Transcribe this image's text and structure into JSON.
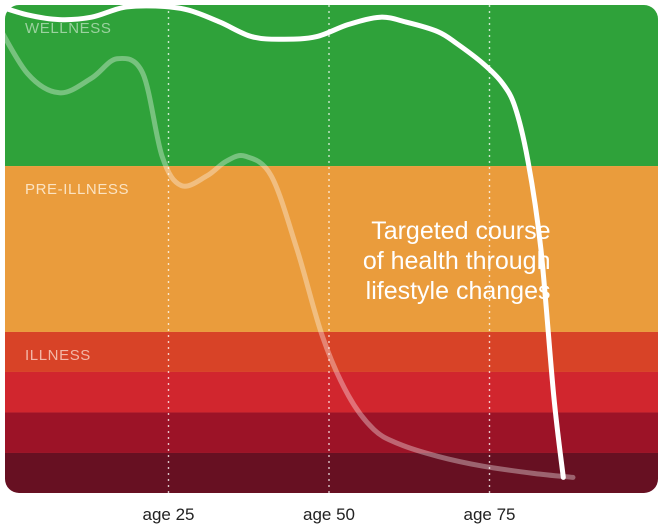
{
  "chart_data": {
    "type": "line",
    "title": "",
    "xlabel": "",
    "ylabel": "",
    "xlim": [
      0,
      100
    ],
    "ylim": [
      0,
      100
    ],
    "x_ticks": [
      {
        "value": 25,
        "label": "age 25"
      },
      {
        "value": 50,
        "label": "age 50"
      },
      {
        "value": 75,
        "label": "age 75"
      }
    ],
    "grid": {
      "vertical": true,
      "style": "dotted"
    },
    "bands": [
      {
        "label": "WELLNESS",
        "from": 67,
        "to": 100,
        "color": "#2fa23a",
        "label_color": "#9bd29f"
      },
      {
        "label": "PRE-ILLNESS",
        "from": 33,
        "to": 67,
        "color": "#ea9c3c",
        "label_color": "#fbe3c2"
      },
      {
        "label": "ILLNESS",
        "from": 24.8,
        "to": 33,
        "color": "#d84327",
        "label_color": "#f3b7a7"
      },
      {
        "label": "",
        "from": 16.5,
        "to": 24.8,
        "color": "#d1262e"
      },
      {
        "label": "",
        "from": 8.2,
        "to": 16.5,
        "color": "#9c1327"
      },
      {
        "label": "",
        "from": 0,
        "to": 8.2,
        "color": "#671022"
      }
    ],
    "series": [
      {
        "color": "#ffffff",
        "opacity": 0.35,
        "stroke": 5,
        "points": [
          [
            -2,
            97
          ],
          [
            3,
            86
          ],
          [
            8,
            82
          ],
          [
            13,
            85
          ],
          [
            17,
            89
          ],
          [
            21,
            86
          ],
          [
            24,
            69
          ],
          [
            27,
            63
          ],
          [
            31,
            65
          ],
          [
            34,
            68
          ],
          [
            37,
            69
          ],
          [
            41,
            65
          ],
          [
            45,
            50
          ],
          [
            49,
            32
          ],
          [
            53,
            20
          ],
          [
            57,
            13
          ],
          [
            61,
            10
          ],
          [
            67,
            7.5
          ],
          [
            74,
            5.5
          ],
          [
            82,
            4
          ],
          [
            88,
            3.2
          ]
        ]
      },
      {
        "color": "#ffffff",
        "opacity": 1,
        "stroke": 5,
        "points": [
          [
            -2,
            100
          ],
          [
            3,
            98
          ],
          [
            8,
            97
          ],
          [
            13,
            97.5
          ],
          [
            18,
            99.5
          ],
          [
            23,
            99.8
          ],
          [
            28,
            99
          ],
          [
            33,
            96.5
          ],
          [
            38,
            93.5
          ],
          [
            43,
            93
          ],
          [
            48,
            93.5
          ],
          [
            53,
            96
          ],
          [
            58,
            97.5
          ],
          [
            62,
            96.5
          ],
          [
            67,
            94.5
          ],
          [
            70,
            92
          ],
          [
            74,
            88
          ],
          [
            77,
            84
          ],
          [
            79,
            79
          ],
          [
            81,
            68
          ],
          [
            83,
            50
          ],
          [
            85,
            20
          ],
          [
            86.5,
            3.2
          ]
        ]
      }
    ],
    "annotations": [
      {
        "lines": [
          "Targeted course",
          "of health through",
          "lifestyle changes"
        ],
        "anchor_x": 84.5,
        "anchor_y": 52,
        "align": "end"
      }
    ]
  }
}
